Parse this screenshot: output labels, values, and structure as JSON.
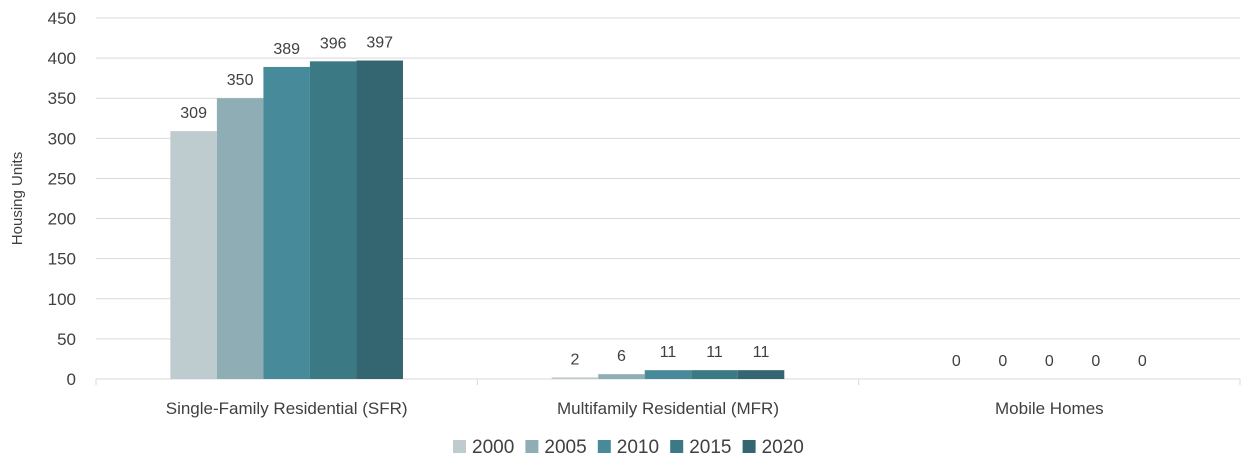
{
  "chart_data": {
    "type": "bar",
    "categories": [
      "Single-Family Residential (SFR)",
      "Multifamily Residential (MFR)",
      "Mobile Homes"
    ],
    "series": [
      {
        "name": "2000",
        "values": [
          309,
          2,
          0
        ],
        "color": "#bfcccf"
      },
      {
        "name": "2005",
        "values": [
          350,
          6,
          0
        ],
        "color": "#8fadb4"
      },
      {
        "name": "2010",
        "values": [
          389,
          11,
          0
        ],
        "color": "#478a9a"
      },
      {
        "name": "2015",
        "values": [
          396,
          11,
          0
        ],
        "color": "#3b7984"
      },
      {
        "name": "2020",
        "values": [
          397,
          11,
          0
        ],
        "color": "#336670"
      }
    ],
    "ylabel": "Housing Units",
    "xlabel": "",
    "ylim": [
      0,
      450
    ],
    "yticks": [
      0,
      50,
      100,
      150,
      200,
      250,
      300,
      350,
      400,
      450
    ],
    "grid": true,
    "legend_position": "bottom",
    "data_labels": true
  }
}
